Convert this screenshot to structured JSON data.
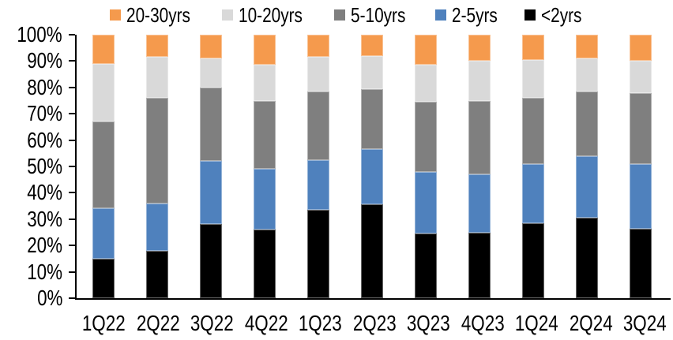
{
  "chart": {
    "title": "",
    "legend_items": [
      {
        "label": "20-30yrs",
        "color": "#F59A4D"
      },
      {
        "label": "10-20yrs",
        "color": "#D9D9D9"
      },
      {
        "label": "5-10yrs",
        "color": "#7F7F7F"
      },
      {
        "label": "2-5yrs",
        "color": "#4F81BD"
      },
      {
        "label": "<2yrs",
        "color": "#000000"
      }
    ],
    "y_axis_tick_labels": [
      "100%",
      "90%",
      "80%",
      "70%",
      "60%",
      "50%",
      "40%",
      "30%",
      "20%",
      "10%",
      "0%"
    ],
    "axis_color": "#000000",
    "background_color": "#FFFFFF"
  },
  "chart_data": {
    "type": "bar",
    "variant": "stacked-100-percent",
    "orientation": "vertical",
    "categories": [
      "1Q22",
      "2Q22",
      "3Q22",
      "4Q22",
      "1Q23",
      "2Q23",
      "3Q23",
      "4Q23",
      "1Q24",
      "2Q24",
      "3Q24"
    ],
    "series": [
      {
        "name": "<2yrs",
        "color": "#000000",
        "values": [
          15,
          18,
          28,
          26,
          33.5,
          35.5,
          24.5,
          25,
          28.5,
          30.5,
          26.5
        ]
      },
      {
        "name": "2-5yrs",
        "color": "#4F81BD",
        "values": [
          19,
          18,
          24,
          23,
          19,
          21,
          23.5,
          22,
          22.5,
          23.5,
          24.5
        ]
      },
      {
        "name": "5-10yrs",
        "color": "#7F7F7F",
        "values": [
          33,
          40,
          28,
          26,
          26,
          23,
          26.5,
          28,
          25,
          24.5,
          27
        ]
      },
      {
        "name": "10-20yrs",
        "color": "#D9D9D9",
        "values": [
          22,
          15.5,
          11,
          13.5,
          13,
          12.5,
          14,
          15,
          14.5,
          12.5,
          12
        ]
      },
      {
        "name": "20-30yrs",
        "color": "#F59A4D",
        "values": [
          11,
          8.5,
          9,
          11.5,
          8.5,
          8,
          11.5,
          10,
          9.5,
          9,
          10
        ]
      }
    ],
    "title": "",
    "xlabel": "",
    "ylabel": "",
    "ylim": [
      0,
      100
    ],
    "y_tick_step": 10,
    "y_tick_format": "percent",
    "legend_position": "top",
    "grid": false,
    "stack_order_bottom_to_top": [
      "<2yrs",
      "2-5yrs",
      "5-10yrs",
      "10-20yrs",
      "20-30yrs"
    ]
  }
}
